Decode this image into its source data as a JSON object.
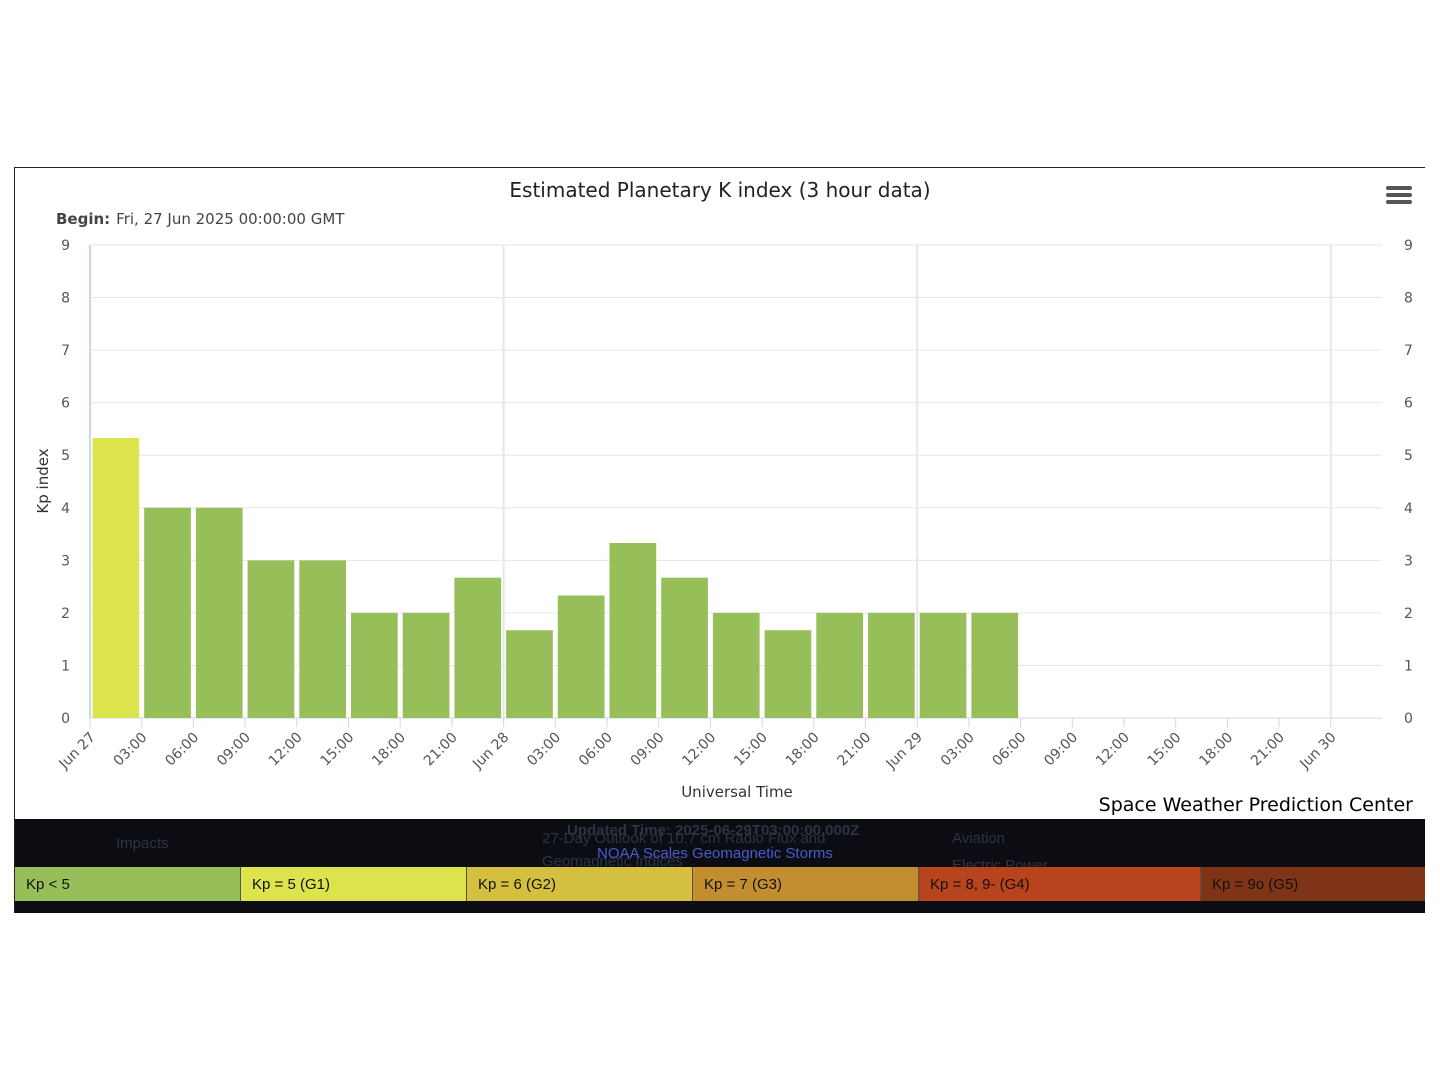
{
  "chart_data": {
    "type": "bar",
    "title": "Estimated Planetary K index (3 hour data)",
    "subtitle_label": "Begin:",
    "subtitle_value": "Fri, 27 Jun 2025 00:00:00 GMT",
    "xlabel": "Universal Time",
    "ylabel": "Kp index",
    "ylim": [
      0,
      9
    ],
    "yticks": [
      "0",
      "1",
      "2",
      "3",
      "4",
      "5",
      "6",
      "7",
      "8",
      "9"
    ],
    "grid": true,
    "x_tick_labels": [
      "Jun 27",
      "03:00",
      "06:00",
      "09:00",
      "12:00",
      "15:00",
      "18:00",
      "21:00",
      "Jun 28",
      "03:00",
      "06:00",
      "09:00",
      "12:00",
      "15:00",
      "18:00",
      "21:00",
      "Jun 29",
      "03:00",
      "06:00",
      "09:00",
      "12:00",
      "15:00",
      "18:00",
      "21:00",
      "Jun 30"
    ],
    "values": [
      5.33,
      4.0,
      4.0,
      3.0,
      3.0,
      2.0,
      2.0,
      2.67,
      1.67,
      2.33,
      3.33,
      2.67,
      2.0,
      1.67,
      2.0,
      2.0,
      2.0,
      2.0
    ],
    "bar_colors": [
      "#dce34d",
      "#96bf5a",
      "#96bf5a",
      "#96bf5a",
      "#96bf5a",
      "#96bf5a",
      "#96bf5a",
      "#96bf5a",
      "#96bf5a",
      "#96bf5a",
      "#96bf5a",
      "#96bf5a",
      "#96bf5a",
      "#96bf5a",
      "#96bf5a",
      "#96bf5a",
      "#96bf5a",
      "#96bf5a"
    ]
  },
  "menu_icon": "hamburger-menu-icon",
  "credit": "Space Weather Prediction Center",
  "legend": [
    {
      "label": "Kp < 5",
      "color": "#96bf5a"
    },
    {
      "label": "Kp = 5 (G1)",
      "color": "#dce34d"
    },
    {
      "label": "Kp = 6 (G2)",
      "color": "#d4bf3f"
    },
    {
      "label": "Kp = 7 (G3)",
      "color": "#c38e30"
    },
    {
      "label": "Kp = 8, 9- (G4)",
      "color": "#b8441e"
    },
    {
      "label": "Kp = 9o (G5)",
      "color": "#7f3317"
    }
  ],
  "background_text": {
    "impacts": "Impacts",
    "updated": "Updated Time: 2025-06-29T03:00:00.000Z",
    "outlook_1": "27-Day Outlook of 10.7 cm Radio Flux and",
    "outlook_2": "Geomagnetic Indices",
    "noaa_link": "NOAA Scales Geomagnetic Storms",
    "aviation": "Aviation",
    "electric": "Electric Power"
  }
}
